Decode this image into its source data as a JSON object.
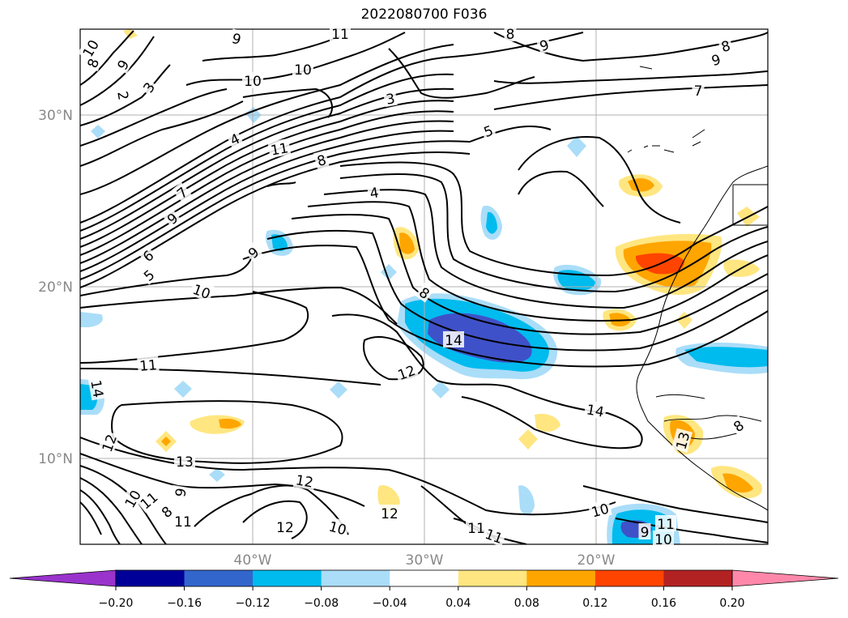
{
  "title": "2022080700 F036",
  "axes": {
    "lat_labels": [
      "30°N",
      "20°N",
      "10°N"
    ],
    "lon_labels": [
      "40°W",
      "30°W",
      "20°W"
    ]
  },
  "colorbar": {
    "ticks": [
      "−0.20",
      "−0.16",
      "−0.12",
      "−0.08",
      "−0.04",
      "0.04",
      "0.08",
      "0.12",
      "0.16",
      "0.20"
    ],
    "colors": [
      "#9933cc",
      "#000099",
      "#3366cc",
      "#00bbee",
      "#aaddf8",
      "#ffffff",
      "#ffe680",
      "#ffa500",
      "#ff4400",
      "#b22222",
      "#ff88aa"
    ]
  },
  "contour_labels": [
    "10",
    "9",
    "8",
    "9",
    "11",
    "10",
    "10",
    "8",
    "9",
    "8",
    "9",
    "7",
    "2",
    "3",
    "3",
    "4",
    "11",
    "8",
    "5",
    "4",
    "7",
    "9",
    "6",
    "5",
    "9",
    "8",
    "10",
    "11",
    "12",
    "14",
    "14",
    "12",
    "13",
    "12",
    "11",
    "9",
    "10",
    "8",
    "11",
    "12",
    "10",
    "12",
    "11",
    "11",
    "10",
    "9",
    "13",
    "11",
    "10",
    "8",
    "14"
  ]
}
